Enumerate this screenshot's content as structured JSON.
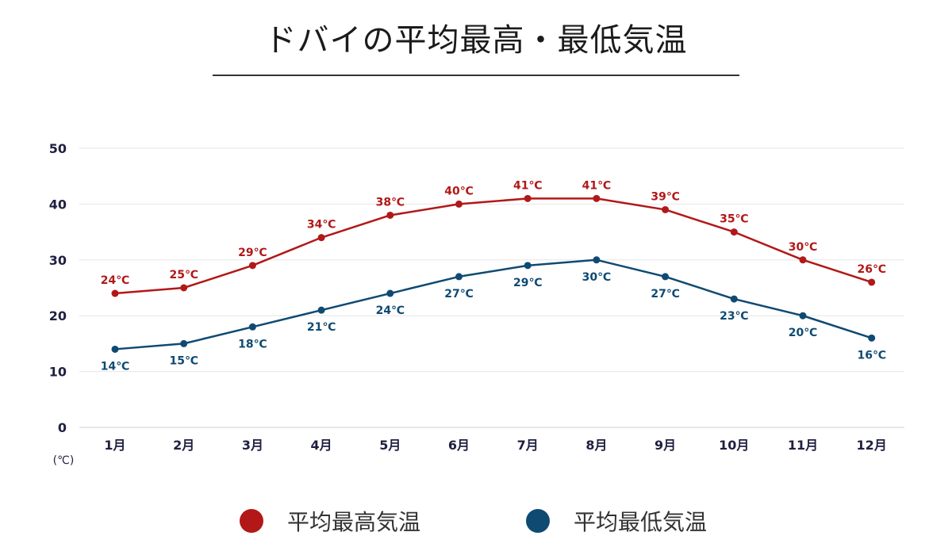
{
  "chart_data": {
    "type": "line",
    "title": "ドバイの平均最高・最低気温",
    "y_unit_label": "(℃)",
    "ylim": [
      0,
      50
    ],
    "yticks": [
      0,
      10,
      20,
      30,
      40,
      50
    ],
    "grid": true,
    "legend_position": "bottom",
    "categories": [
      "1月",
      "2月",
      "3月",
      "4月",
      "5月",
      "6月",
      "7月",
      "8月",
      "9月",
      "10月",
      "11月",
      "12月"
    ],
    "label_suffix": "℃",
    "series": [
      {
        "name": "平均最高気温",
        "color": "#b21818",
        "label_position": "above",
        "values": [
          24,
          25,
          29,
          34,
          38,
          40,
          41,
          41,
          39,
          35,
          30,
          26
        ]
      },
      {
        "name": "平均最低気温",
        "color": "#0f4a73",
        "label_position": "below",
        "values": [
          14,
          15,
          18,
          21,
          24,
          27,
          29,
          30,
          27,
          23,
          20,
          16
        ]
      }
    ]
  }
}
